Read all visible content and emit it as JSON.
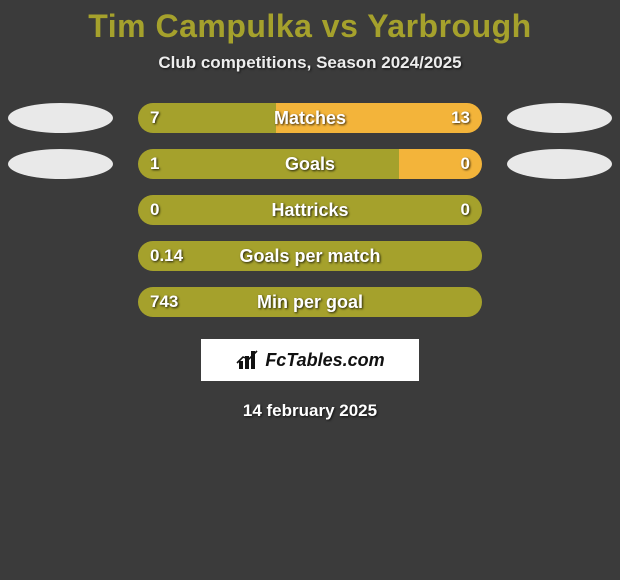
{
  "title": {
    "player1": "Tim Campulka",
    "vs": "vs",
    "player2": "Yarbrough",
    "color": "#a5a12c"
  },
  "subtitle": "Club competitions, Season 2024/2025",
  "colors": {
    "background": "#3b3b3b",
    "text": "#ffffff",
    "left_ellipse": "#e9e9e9",
    "right_ellipse": "#e9e9e9",
    "bar_base": "#a5a12c",
    "bar_accent": "#f3b43a"
  },
  "bar": {
    "track_width": 344,
    "height": 30,
    "radius": 15
  },
  "stats": [
    {
      "label": "Matches",
      "left_value": "7",
      "right_value": "13",
      "left_width_pct": 40,
      "right_width_pct": 60,
      "left_color": "#a5a12c",
      "right_color": "#f3b43a",
      "show_ellipses": true
    },
    {
      "label": "Goals",
      "left_value": "1",
      "right_value": "0",
      "left_width_pct": 76,
      "right_width_pct": 24,
      "left_color": "#a5a12c",
      "right_color": "#f3b43a",
      "show_ellipses": true
    },
    {
      "label": "Hattricks",
      "left_value": "0",
      "right_value": "0",
      "left_width_pct": 100,
      "right_width_pct": 0,
      "left_color": "#a5a12c",
      "right_color": "#f3b43a",
      "show_ellipses": false
    },
    {
      "label": "Goals per match",
      "left_value": "0.14",
      "right_value": "",
      "left_width_pct": 100,
      "right_width_pct": 0,
      "left_color": "#a5a12c",
      "right_color": "#f3b43a",
      "show_ellipses": false
    },
    {
      "label": "Min per goal",
      "left_value": "743",
      "right_value": "",
      "left_width_pct": 100,
      "right_width_pct": 0,
      "left_color": "#a5a12c",
      "right_color": "#f3b43a",
      "show_ellipses": false
    }
  ],
  "logo": {
    "text": "FcTables.com",
    "icon_color": "#111111",
    "box_bg": "#ffffff"
  },
  "date": "14 february 2025"
}
